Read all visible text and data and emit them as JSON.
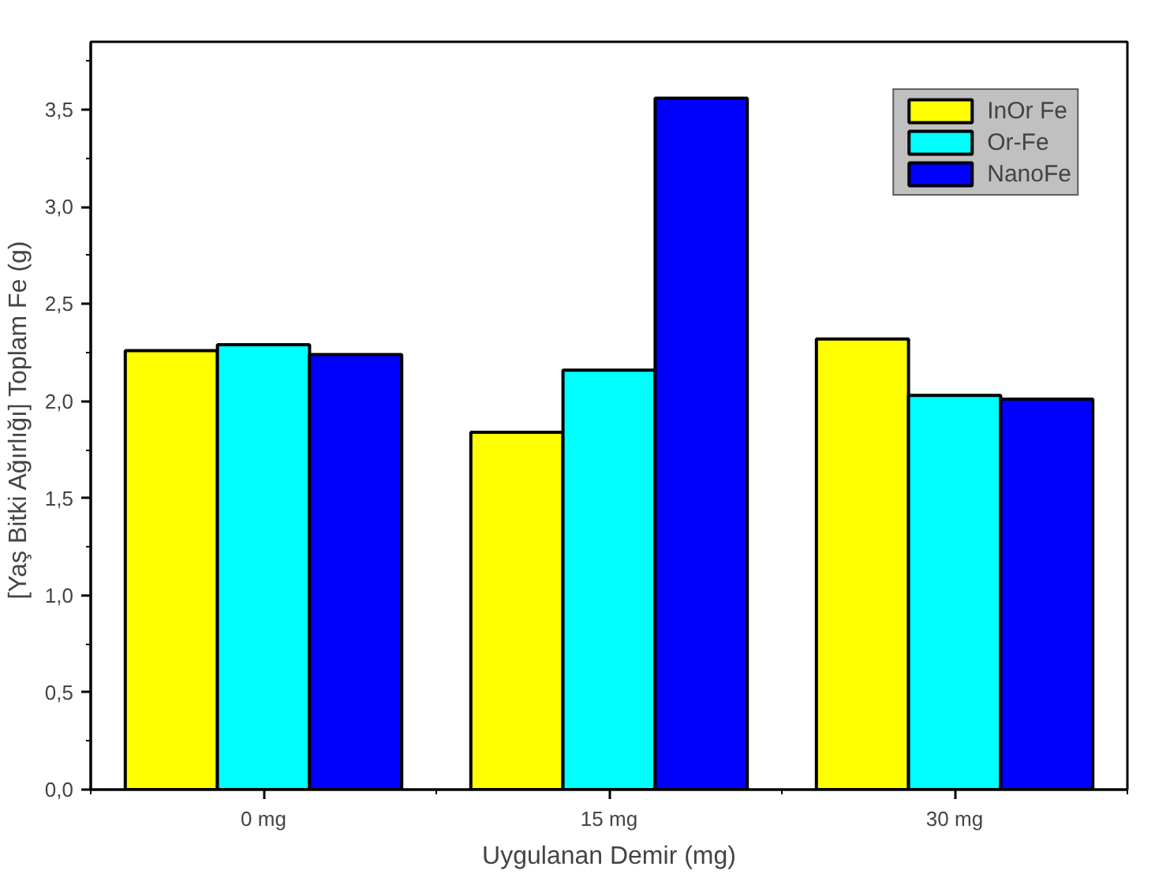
{
  "chart_data": {
    "type": "bar",
    "xlabel": "Uygulanan Demir (mg)",
    "ylabel": "[Yaş Bitki Ağırlığı]  Toplam Fe (g)",
    "categories": [
      "0 mg",
      "15 mg",
      "30 mg"
    ],
    "series": [
      {
        "name": "InOr Fe",
        "color": "#ffff00",
        "values": [
          2.26,
          1.84,
          2.32
        ]
      },
      {
        "name": "Or-Fe",
        "color": "#00ffff",
        "values": [
          2.29,
          2.16,
          2.03
        ]
      },
      {
        "name": "NanoFe",
        "color": "#0000ff",
        "values": [
          2.24,
          3.56,
          2.01
        ]
      }
    ],
    "ylim": [
      0,
      3.85
    ],
    "yticks": [
      {
        "value": 0,
        "label": "0,0"
      },
      {
        "value": 0.5,
        "label": "0,5"
      },
      {
        "value": 1,
        "label": "1,0"
      },
      {
        "value": 1.5,
        "label": "1,5"
      },
      {
        "value": 2,
        "label": "2,0"
      },
      {
        "value": 2.5,
        "label": "2,5"
      },
      {
        "value": 3,
        "label": "3,0"
      },
      {
        "value": 3.5,
        "label": "3,5"
      }
    ],
    "grid": false,
    "legend": "top right"
  }
}
